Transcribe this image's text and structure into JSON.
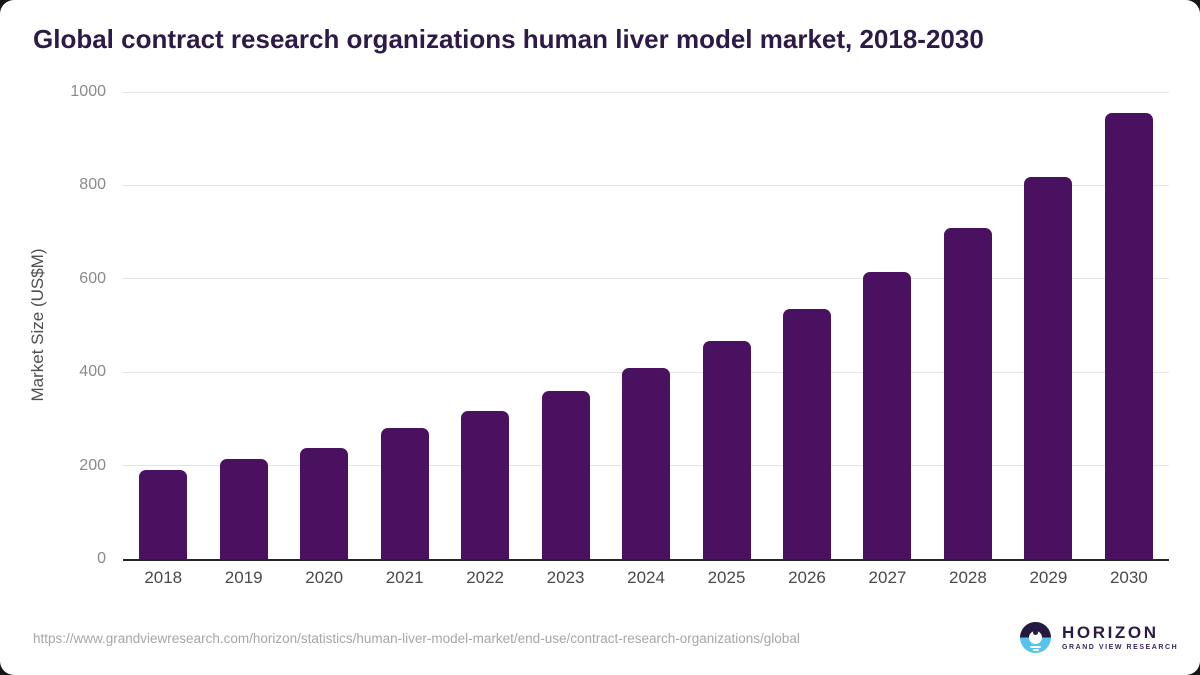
{
  "page": {
    "source_url": "https://www.grandviewresearch.com/horizon/statistics/human-liver-model-market/end-use/contract-research-organizations/global",
    "logo": {
      "brand": "HORIZON",
      "sub_brand": "GRAND VIEW RESEARCH",
      "icon": "horizon-sunrise-icon"
    }
  },
  "chart_data": {
    "type": "bar",
    "title": "Global contract research organizations human liver model market, 2018-2030",
    "categories": [
      "2018",
      "2019",
      "2020",
      "2021",
      "2022",
      "2023",
      "2024",
      "2025",
      "2026",
      "2027",
      "2028",
      "2029",
      "2030"
    ],
    "values": [
      190,
      215,
      237,
      280,
      318,
      360,
      409,
      466,
      535,
      614,
      708,
      819,
      956
    ],
    "xlabel": "",
    "ylabel": "Market Size (US$M)",
    "ylim": [
      0,
      1000
    ],
    "yticks": [
      0,
      200,
      400,
      600,
      800,
      1000
    ],
    "grid": true,
    "legend": false,
    "colors": {
      "bar": "#4a1160",
      "title": "#2d1a47",
      "ytick_text": "#8a8a8a",
      "xtick_text": "#4a4a4a",
      "gridline": "#e4e4e4",
      "baseline": "#262626",
      "source_text": "#a6a6a6",
      "logo_dark": "#241a40",
      "logo_blue": "#55c3ee"
    }
  }
}
